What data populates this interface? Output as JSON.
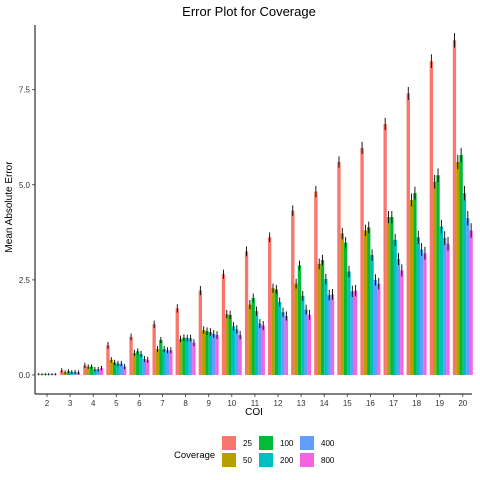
{
  "chart_data": {
    "type": "bar",
    "title": "Error Plot for Coverage",
    "xlabel": "COI",
    "ylabel": "Mean Absolute Error",
    "categories": [
      "2",
      "3",
      "4",
      "5",
      "6",
      "7",
      "8",
      "9",
      "10",
      "11",
      "12",
      "13",
      "14",
      "15",
      "16",
      "17",
      "18",
      "19",
      "20"
    ],
    "ylim": [
      -0.5,
      9.2
    ],
    "yticks": [
      0.0,
      2.5,
      5.0,
      7.5
    ],
    "ytick_labels": [
      "0.0",
      "2.5",
      "5.0",
      "7.5"
    ],
    "grid": false,
    "legend": {
      "title": "Coverage",
      "position": "bottom"
    },
    "series": [
      {
        "name": "25",
        "color": "#F8766D",
        "values": [
          0.02,
          0.12,
          0.25,
          0.78,
          1.0,
          1.33,
          1.75,
          2.22,
          2.65,
          3.25,
          3.62,
          4.32,
          4.82,
          5.6,
          5.97,
          6.6,
          7.4,
          8.25,
          8.8
        ],
        "errors": [
          0.03,
          0.06,
          0.07,
          0.09,
          0.09,
          0.1,
          0.11,
          0.12,
          0.12,
          0.13,
          0.13,
          0.14,
          0.15,
          0.15,
          0.16,
          0.16,
          0.17,
          0.18,
          0.19
        ]
      },
      {
        "name": "50",
        "color": "#B79F00",
        "values": [
          0.02,
          0.07,
          0.22,
          0.4,
          0.58,
          0.68,
          0.95,
          1.18,
          1.6,
          1.85,
          2.28,
          2.4,
          2.92,
          3.72,
          3.8,
          4.15,
          4.6,
          5.08,
          5.6
        ],
        "errors": [
          0.03,
          0.05,
          0.06,
          0.07,
          0.08,
          0.08,
          0.09,
          0.1,
          0.11,
          0.12,
          0.12,
          0.13,
          0.14,
          0.15,
          0.15,
          0.16,
          0.17,
          0.18,
          0.19
        ]
      },
      {
        "name": "100",
        "color": "#00BA38",
        "values": [
          0.02,
          0.1,
          0.22,
          0.33,
          0.62,
          0.92,
          0.98,
          1.15,
          1.58,
          2.02,
          2.25,
          2.88,
          3.02,
          3.48,
          3.88,
          4.15,
          4.78,
          5.25,
          5.78
        ],
        "errors": [
          0.03,
          0.05,
          0.06,
          0.07,
          0.08,
          0.08,
          0.09,
          0.1,
          0.11,
          0.12,
          0.12,
          0.13,
          0.14,
          0.15,
          0.15,
          0.16,
          0.17,
          0.18,
          0.19
        ]
      },
      {
        "name": "200",
        "color": "#00BFC4",
        "values": [
          0.02,
          0.08,
          0.15,
          0.3,
          0.55,
          0.68,
          0.97,
          1.13,
          1.28,
          1.68,
          1.92,
          2.08,
          2.52,
          2.72,
          3.15,
          3.55,
          3.62,
          3.9,
          4.78
        ],
        "errors": [
          0.03,
          0.05,
          0.06,
          0.07,
          0.08,
          0.08,
          0.09,
          0.1,
          0.11,
          0.12,
          0.12,
          0.13,
          0.14,
          0.15,
          0.15,
          0.16,
          0.17,
          0.18,
          0.19
        ]
      },
      {
        "name": "400",
        "color": "#619CFF",
        "values": [
          0.02,
          0.08,
          0.15,
          0.3,
          0.42,
          0.65,
          0.97,
          1.08,
          1.2,
          1.35,
          1.65,
          1.72,
          2.1,
          2.2,
          2.5,
          3.05,
          3.3,
          3.6,
          4.12
        ],
        "errors": [
          0.03,
          0.05,
          0.06,
          0.07,
          0.08,
          0.08,
          0.09,
          0.1,
          0.11,
          0.12,
          0.12,
          0.13,
          0.14,
          0.15,
          0.15,
          0.16,
          0.17,
          0.18,
          0.19
        ]
      },
      {
        "name": "800",
        "color": "#F564E3",
        "values": [
          0.02,
          0.07,
          0.18,
          0.22,
          0.4,
          0.65,
          0.85,
          1.05,
          1.05,
          1.3,
          1.55,
          1.58,
          2.12,
          2.22,
          2.4,
          2.75,
          3.2,
          3.45,
          3.8
        ],
        "errors": [
          0.03,
          0.05,
          0.06,
          0.07,
          0.08,
          0.08,
          0.09,
          0.1,
          0.11,
          0.12,
          0.12,
          0.13,
          0.14,
          0.15,
          0.15,
          0.16,
          0.17,
          0.18,
          0.19
        ]
      }
    ]
  }
}
